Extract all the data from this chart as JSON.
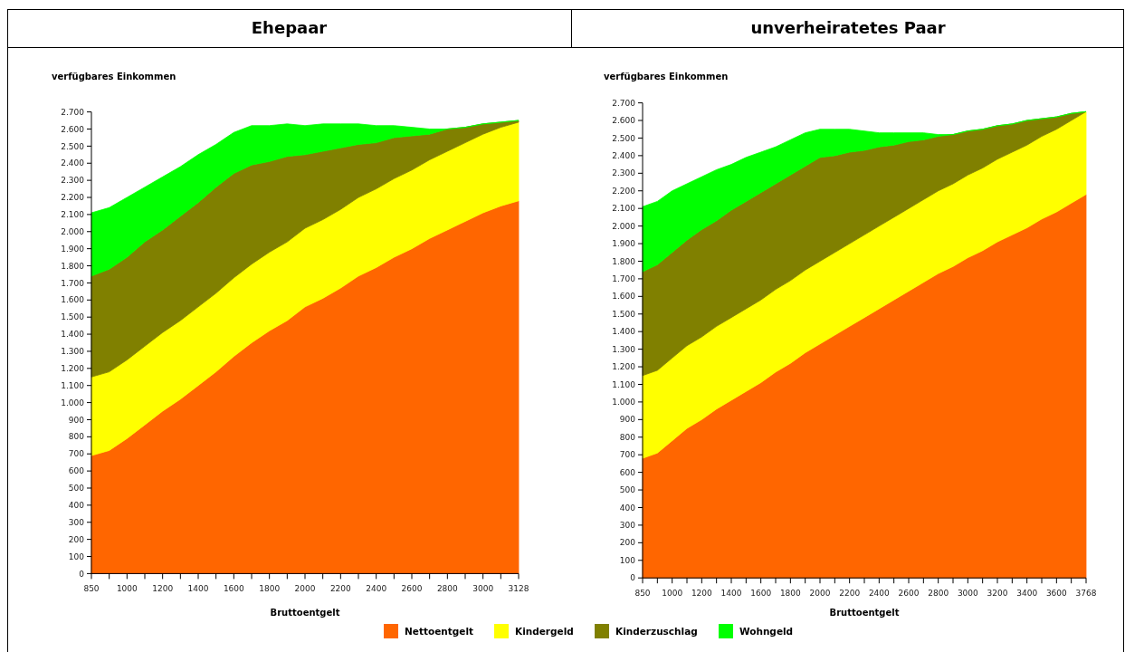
{
  "chart_data": [
    {
      "type": "area",
      "title": "Ehepaar",
      "ylabel": "verfügbares Einkommen",
      "xlabel": "Bruttoentgelt",
      "stacked": true,
      "legend": "bottom",
      "categories": [
        "850",
        null,
        "1000",
        null,
        "1200",
        null,
        "1400",
        null,
        "1600",
        null,
        "1800",
        null,
        "2000",
        null,
        "2200",
        null,
        "2400",
        null,
        "2600",
        null,
        "2800",
        null,
        "3000",
        null,
        "3128"
      ],
      "ylim": [
        0,
        2700
      ],
      "yticks": [
        0,
        100,
        200,
        300,
        400,
        500,
        600,
        700,
        800,
        900,
        {
          "value": 1000,
          "label": "1.000"
        },
        {
          "value": 1100,
          "label": "1.100"
        },
        {
          "value": 1200,
          "label": "1.200"
        },
        {
          "value": 1300,
          "label": "1.300"
        },
        {
          "value": 1400,
          "label": "1.400"
        },
        {
          "value": 1500,
          "label": "1.500"
        },
        {
          "value": 1600,
          "label": "1.600"
        },
        {
          "value": 1700,
          "label": "1.700"
        },
        {
          "value": 1800,
          "label": "1.800"
        },
        {
          "value": 1900,
          "label": "1.900"
        },
        {
          "value": 2000,
          "label": "2.000"
        },
        {
          "value": 2100,
          "label": "2.100"
        },
        {
          "value": 2200,
          "label": "2.200"
        },
        {
          "value": 2300,
          "label": "2.300"
        },
        {
          "value": 2400,
          "label": "2.400"
        },
        {
          "value": 2500,
          "label": "2.500"
        },
        {
          "value": 2600,
          "label": "2.600"
        },
        {
          "value": 2700,
          "label": "2.700"
        }
      ],
      "series": [
        {
          "name": "Nettoentgelt",
          "color": "#ff6600",
          "values": [
            690,
            720,
            790,
            870,
            950,
            1020,
            1100,
            1180,
            1270,
            1350,
            1420,
            1480,
            1560,
            1610,
            1670,
            1740,
            1790,
            1850,
            1900,
            1960,
            2010,
            2060,
            2110,
            2150,
            2180
          ]
        },
        {
          "name": "Kindergeld",
          "color": "#ffff00",
          "values": [
            460,
            460,
            460,
            460,
            460,
            460,
            460,
            460,
            460,
            460,
            460,
            460,
            460,
            460,
            460,
            460,
            460,
            460,
            460,
            460,
            460,
            460,
            460,
            460,
            460
          ]
        },
        {
          "name": "Kinderzuschlag",
          "color": "#808000",
          "values": [
            590,
            600,
            600,
            610,
            600,
            610,
            610,
            620,
            610,
            580,
            530,
            500,
            430,
            400,
            360,
            310,
            270,
            240,
            200,
            150,
            130,
            90,
            60,
            30,
            10
          ]
        },
        {
          "name": "Wohngeld",
          "color": "#00ff00",
          "values": [
            370,
            360,
            350,
            320,
            310,
            290,
            280,
            250,
            240,
            230,
            210,
            190,
            170,
            160,
            140,
            120,
            100,
            70,
            50,
            30,
            0,
            0,
            0,
            0,
            0
          ]
        }
      ]
    },
    {
      "type": "area",
      "title": "unverheiratetes Paar",
      "ylabel": "verfügbares Einkommen",
      "xlabel": "Bruttoentgelt",
      "stacked": true,
      "categories": [
        "850",
        null,
        "1000",
        null,
        "1200",
        null,
        "1400",
        null,
        "1600",
        null,
        "1800",
        null,
        "2000",
        null,
        "2200",
        null,
        "2400",
        null,
        "2600",
        null,
        "2800",
        null,
        "3000",
        null,
        "3200",
        null,
        "3400",
        null,
        "3600",
        null,
        "3768"
      ],
      "ylim": [
        0,
        2700
      ],
      "yticks": [
        0,
        100,
        200,
        300,
        400,
        500,
        600,
        700,
        800,
        900,
        {
          "value": 1000,
          "label": "1.000"
        },
        {
          "value": 1100,
          "label": "1.100"
        },
        {
          "value": 1200,
          "label": "1.200"
        },
        {
          "value": 1300,
          "label": "1.300"
        },
        {
          "value": 1400,
          "label": "1.400"
        },
        {
          "value": 1500,
          "label": "1.500"
        },
        {
          "value": 1600,
          "label": "1.600"
        },
        {
          "value": 1700,
          "label": "1.700"
        },
        {
          "value": 1800,
          "label": "1.800"
        },
        {
          "value": 1900,
          "label": "1.900"
        },
        {
          "value": 2000,
          "label": "2.000"
        },
        {
          "value": 2100,
          "label": "2.100"
        },
        {
          "value": 2200,
          "label": "2.200"
        },
        {
          "value": 2300,
          "label": "2.300"
        },
        {
          "value": 2400,
          "label": "2.400"
        },
        {
          "value": 2500,
          "label": "2.500"
        },
        {
          "value": 2600,
          "label": "2.600"
        },
        {
          "value": 2700,
          "label": "2.700"
        }
      ],
      "series": [
        {
          "color": "#ff6600",
          "values": [
            680,
            710,
            780,
            850,
            900,
            960,
            1010,
            1060,
            1110,
            1170,
            1220,
            1280,
            1330,
            1380,
            1430,
            1480,
            1530,
            1580,
            1630,
            1680,
            1730,
            1770,
            1820,
            1860,
            1910,
            1950,
            1990,
            2040,
            2080,
            2130,
            2180
          ]
        },
        {
          "color": "#ffff00",
          "values": [
            470,
            470,
            470,
            470,
            470,
            470,
            470,
            470,
            470,
            470,
            470,
            470,
            470,
            470,
            470,
            470,
            470,
            470,
            470,
            470,
            470,
            470,
            470,
            470,
            470,
            470,
            470,
            470,
            470,
            470,
            470
          ]
        },
        {
          "color": "#808000",
          "values": [
            590,
            600,
            600,
            600,
            610,
            600,
            610,
            610,
            610,
            600,
            600,
            590,
            590,
            550,
            520,
            480,
            450,
            410,
            380,
            340,
            310,
            280,
            250,
            220,
            190,
            160,
            140,
            100,
            70,
            40,
            0
          ]
        },
        {
          "color": "#00ff00",
          "values": [
            370,
            360,
            350,
            320,
            300,
            290,
            260,
            250,
            230,
            210,
            200,
            190,
            160,
            150,
            130,
            110,
            80,
            70,
            50,
            40,
            10,
            0,
            0,
            0,
            0,
            0,
            0,
            0,
            0,
            0,
            0
          ]
        }
      ]
    }
  ]
}
